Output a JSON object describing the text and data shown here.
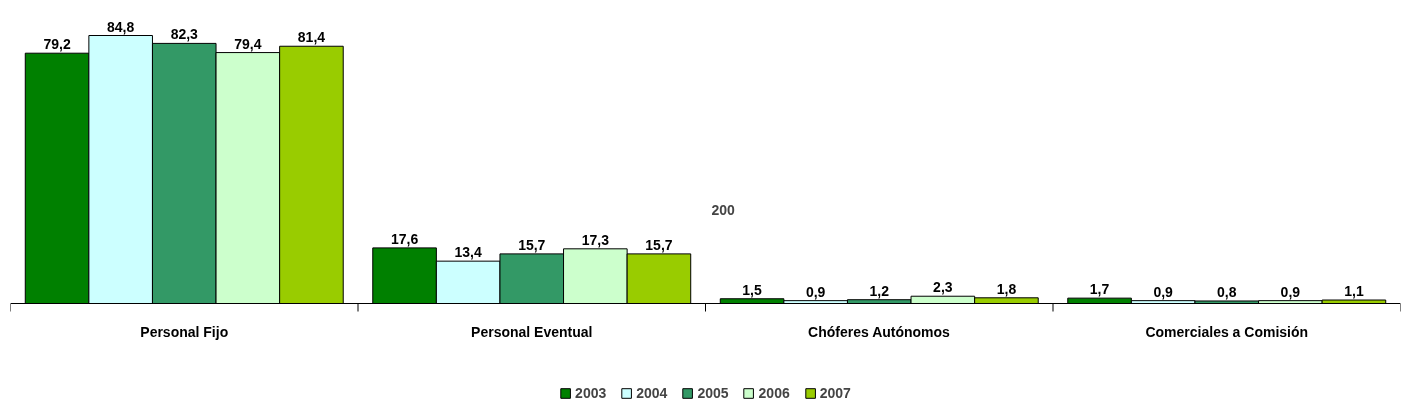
{
  "chart_data": {
    "type": "bar",
    "categories": [
      "Personal Fijo",
      "Personal Eventual",
      "Chóferes Autónomos",
      "Comerciales a Comisión"
    ],
    "series": [
      {
        "name": "2003",
        "color": "#008000",
        "values": [
          79.2,
          17.6,
          1.5,
          1.7
        ],
        "value_labels": [
          "79,2",
          "17,6",
          "1,5",
          "1,7"
        ]
      },
      {
        "name": "2004",
        "color": "#ccffff",
        "values": [
          84.8,
          13.4,
          0.9,
          0.9
        ],
        "value_labels": [
          "84,8",
          "13,4",
          "0,9",
          "0,9"
        ]
      },
      {
        "name": "2005",
        "color": "#339966",
        "values": [
          82.3,
          15.7,
          1.2,
          0.8
        ],
        "value_labels": [
          "82,3",
          "15,7",
          "1,2",
          "0,8"
        ]
      },
      {
        "name": "2006",
        "color": "#ccffcc",
        "values": [
          79.4,
          17.3,
          2.3,
          0.9
        ],
        "value_labels": [
          "79,4",
          "17,3",
          "2,3",
          "0,9"
        ]
      },
      {
        "name": "2007",
        "color": "#99cc00",
        "values": [
          81.4,
          15.7,
          1.8,
          1.1
        ],
        "value_labels": [
          "81,4",
          "15,7",
          "1,8",
          "1,1"
        ]
      }
    ],
    "legend": "bottom",
    "grid": false,
    "annotations": [
      "200"
    ]
  }
}
